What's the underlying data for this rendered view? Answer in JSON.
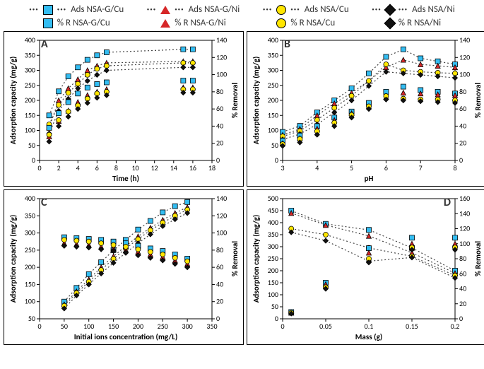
{
  "legend": {
    "row1": [
      {
        "marker": "square-line",
        "name": "Ads NSA-G/Cu",
        "color": "#33bdf2",
        "border": "#000"
      },
      {
        "marker": "triangle-line",
        "name": "Ads NSA-G/Ni",
        "color": "#d62728",
        "border": "#000"
      },
      {
        "marker": "circle-line",
        "name": "Ads NSA/Cu",
        "color": "#ffe600",
        "border": "#000"
      },
      {
        "marker": "diamond-line",
        "name": "Ads NSA/Ni",
        "color": "#111",
        "border": "#000"
      }
    ],
    "row2": [
      {
        "marker": "square",
        "name": "% R  NSA-G/Cu",
        "color": "#33bdf2",
        "border": "#000"
      },
      {
        "marker": "triangle",
        "name": "% R  NSA-G/Ni",
        "color": "#d62728",
        "border": "#000"
      },
      {
        "marker": "circle",
        "name": "% R  NSA/Cu",
        "color": "#ffe600",
        "border": "#000"
      },
      {
        "marker": "diamond",
        "name": "% R  NSA/Ni",
        "color": "#111",
        "border": "#000"
      }
    ]
  },
  "colors": {
    "cu_g": "#33bdf2",
    "ni_g": "#d62728",
    "cu": "#ffe600",
    "ni": "#111",
    "axis": "#000",
    "grid": "#ffffff",
    "line": "#444"
  },
  "style": {
    "marker_size": 7,
    "line_dash": "2,3",
    "axis_fontsize": 10,
    "label_fontsize": 11,
    "title_fontsize": 11,
    "panel_label_fontsize": 16
  },
  "panels": {
    "A": {
      "label": "A",
      "label_pos": "tl",
      "ylabel": "Adsorption capacity (mg/g)",
      "y2label": "% Removal",
      "xlabel": "Time (h)",
      "xlim": [
        0,
        18
      ],
      "xtick_step": 2,
      "ylim": [
        0,
        400
      ],
      "ytick_step": 50,
      "y2lim": [
        0,
        140
      ],
      "y2tick_step": 20,
      "x": [
        1,
        2,
        3,
        4,
        5,
        6,
        7,
        15,
        16
      ],
      "ads": {
        "cu_g": [
          150,
          230,
          280,
          310,
          335,
          350,
          360,
          370,
          370
        ],
        "ni_g": [
          110,
          200,
          240,
          270,
          300,
          315,
          325,
          330,
          330
        ],
        "cu": [
          120,
          185,
          225,
          255,
          285,
          305,
          315,
          325,
          325
        ],
        "ni": [
          90,
          165,
          205,
          240,
          265,
          285,
          300,
          310,
          310
        ]
      },
      "rem": {
        "cu_g": [
          38,
          55,
          68,
          78,
          85,
          89,
          91,
          93,
          93
        ],
        "ni_g": [
          28,
          46,
          58,
          68,
          76,
          80,
          83,
          85,
          85
        ],
        "cu": [
          30,
          47,
          57,
          64,
          72,
          78,
          80,
          83,
          83
        ],
        "ni": [
          22,
          40,
          51,
          60,
          67,
          73,
          76,
          79,
          79
        ]
      }
    },
    "B": {
      "label": "B",
      "label_pos": "tl",
      "ylabel": "Adsorption capacity (mg/g)",
      "y2label": "% Removal",
      "xlabel": "pH",
      "xlim": [
        3,
        8
      ],
      "xtick_step": 1,
      "ylim": [
        0,
        400
      ],
      "ytick_step": 50,
      "y2lim": [
        0,
        140
      ],
      "y2tick_step": 20,
      "x": [
        3,
        3.5,
        4,
        4.5,
        5,
        5.5,
        6,
        6.5,
        7,
        7.5,
        8
      ],
      "ads": {
        "cu_g": [
          95,
          115,
          160,
          200,
          240,
          290,
          345,
          370,
          340,
          330,
          320
        ],
        "ni_g": [
          85,
          105,
          150,
          190,
          225,
          265,
          310,
          335,
          320,
          315,
          310
        ],
        "cu": [
          80,
          98,
          135,
          175,
          215,
          265,
          320,
          300,
          295,
          292,
          290
        ],
        "ni": [
          70,
          88,
          120,
          160,
          200,
          248,
          295,
          290,
          285,
          280,
          275
        ]
      },
      "rem": {
        "cu_g": [
          23,
          29,
          40,
          50,
          57,
          67,
          80,
          86,
          82,
          80,
          78
        ],
        "ni_g": [
          20,
          26,
          37,
          47,
          55,
          63,
          74,
          79,
          78,
          77,
          76
        ],
        "cu": [
          19,
          25,
          34,
          44,
          53,
          63,
          75,
          72,
          71,
          71,
          70
        ],
        "ni": [
          17,
          21,
          30,
          40,
          50,
          60,
          71,
          70,
          69,
          68,
          67
        ]
      }
    },
    "C": {
      "label": "C",
      "label_pos": "tl",
      "ylabel": "Adsorption capacity (mg/g)",
      "y2label": "% Removal",
      "xlabel": "Initial ions concentration (mg/L)",
      "xlim": [
        0,
        350
      ],
      "xtick_step": 50,
      "ylim": [
        50,
        400
      ],
      "ytick_step": 50,
      "y2lim": [
        0,
        140
      ],
      "y2tick_step": 20,
      "x": [
        50,
        75,
        100,
        125,
        150,
        175,
        200,
        225,
        250,
        275,
        300
      ],
      "ads": {
        "cu_g": [
          100,
          140,
          180,
          215,
          250,
          280,
          310,
          335,
          360,
          378,
          390
        ],
        "ni_g": [
          92,
          130,
          165,
          200,
          232,
          262,
          290,
          315,
          338,
          358,
          375
        ],
        "cu": [
          88,
          125,
          158,
          192,
          225,
          255,
          282,
          308,
          330,
          350,
          368
        ],
        "ni": [
          80,
          118,
          150,
          182,
          213,
          242,
          270,
          296,
          320,
          340,
          358
        ]
      },
      "rem": {
        "cu_g": [
          95,
          94,
          93,
          92,
          90,
          88,
          85,
          82,
          79,
          75,
          70
        ],
        "ni_g": [
          88,
          87,
          86,
          84,
          82,
          80,
          78,
          75,
          72,
          68,
          64
        ],
        "cu": [
          92,
          91,
          90,
          88,
          86,
          84,
          81,
          78,
          75,
          71,
          67
        ],
        "ni": [
          85,
          84,
          83,
          81,
          79,
          77,
          74,
          71,
          68,
          64,
          60
        ]
      }
    },
    "D": {
      "label": "D",
      "label_pos": "tr",
      "ylabel": "Adsorption capacity (mg/g)",
      "y2label": "% Removal",
      "xlabel": "Mass (g)",
      "xlim": [
        0,
        0.2
      ],
      "xtick_step": 0.05,
      "ylim": [
        0,
        500
      ],
      "ytick_step": 50,
      "y2lim": [
        0,
        160
      ],
      "y2tick_step": 20,
      "x": [
        0.01,
        0.05,
        0.1,
        0.15,
        0.2
      ],
      "ads": {
        "cu_g": [
          450,
          395,
          370,
          295,
          200
        ],
        "ni_g": [
          440,
          390,
          345,
          275,
          190
        ],
        "cu": [
          375,
          350,
          295,
          260,
          180
        ],
        "ni": [
          360,
          325,
          240,
          255,
          170
        ]
      },
      "rem": {
        "cu_g": [
          9,
          48,
          94,
          108,
          108
        ],
        "ni_g": [
          8,
          46,
          88,
          100,
          100
        ],
        "cu": [
          8,
          42,
          80,
          95,
          95
        ],
        "ni": [
          7,
          40,
          75,
          92,
          92
        ]
      }
    }
  }
}
